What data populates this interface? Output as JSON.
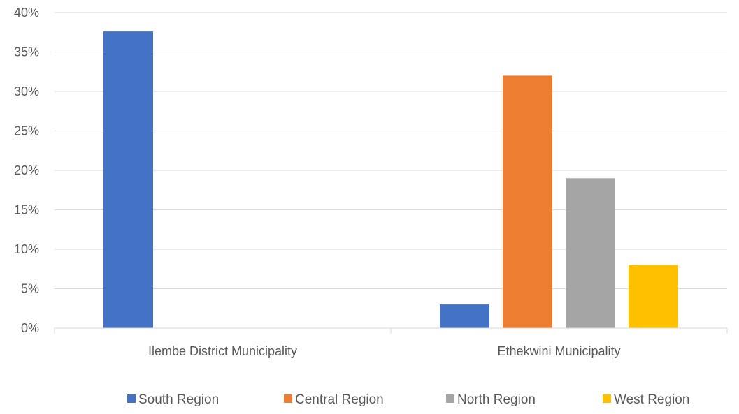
{
  "chart_data": {
    "type": "bar",
    "categories": [
      "Ilembe District Municipality",
      "Ethekwini Municipality"
    ],
    "series": [
      {
        "name": "South Region",
        "color": "#4472C4",
        "values": [
          37.6,
          3
        ]
      },
      {
        "name": "Central Region",
        "color": "#ED7D31",
        "values": [
          null,
          32
        ]
      },
      {
        "name": "North Region",
        "color": "#A5A5A5",
        "values": [
          null,
          19
        ]
      },
      {
        "name": "West Region",
        "color": "#FFC000",
        "values": [
          null,
          8
        ]
      }
    ],
    "yticks": [
      "0%",
      "5%",
      "10%",
      "15%",
      "20%",
      "25%",
      "30%",
      "35%",
      "40%"
    ],
    "ylim": [
      0,
      40
    ],
    "grid": true,
    "legend": "bottom"
  }
}
